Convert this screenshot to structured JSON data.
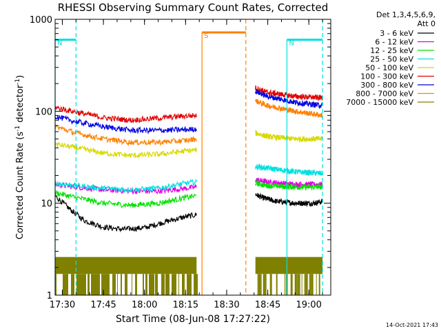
{
  "chart_data": {
    "type": "line",
    "title": "RHESSI Observing Summary Count Rates, Corrected",
    "xlabel": "Start Time (08-Jun-08 17:27:22)",
    "ylabel_main": "Corrected Count Rate (s",
    "ylabel_sup1": "-1",
    "ylabel_mid": " detector",
    "ylabel_sup2": "-1",
    "ylabel_end": ")",
    "yscale": "log",
    "ylim": [
      1,
      1000
    ],
    "xlim": [
      "17:27:22",
      "19:08:00"
    ],
    "x_ticks": [
      "17:30",
      "17:45",
      "18:00",
      "18:15",
      "18:30",
      "18:45",
      "19:00"
    ],
    "y_ticks": [
      "1",
      "10",
      "100",
      "1000"
    ],
    "legend": {
      "header": "Det 1,3,4,5,6,9,",
      "subheader": "Att 0",
      "position": "right",
      "entries": [
        {
          "label": "3 - 6 keV",
          "color": "#000000"
        },
        {
          "label": "6 - 12 keV",
          "color": "#e000e0"
        },
        {
          "label": "12 - 25 keV",
          "color": "#00e000"
        },
        {
          "label": "25 - 50 keV",
          "color": "#00e0e0"
        },
        {
          "label": "50 - 100 keV",
          "color": "#d8d800"
        },
        {
          "label": "100 - 300 keV",
          "color": "#e00000"
        },
        {
          "label": "300 - 800 keV",
          "color": "#0000e0"
        },
        {
          "label": "800 - 7000 keV",
          "color": "#ff8000"
        },
        {
          "label": "7000 - 15000 keV",
          "color": "#808000"
        }
      ]
    },
    "series": [
      {
        "name": "3 - 6 keV",
        "color": "#000000",
        "segments": [
          {
            "x": [
              "17:27:22",
              "17:33",
              "17:38",
              "17:45",
              "17:52",
              "18:00",
              "18:07",
              "18:14",
              "18:19"
            ],
            "y": [
              12,
              8.5,
              6.5,
              5.5,
              5.2,
              5.4,
              6.2,
              7,
              7.5
            ]
          },
          {
            "x": [
              "18:40:30",
              "18:43",
              "18:48",
              "18:55",
              "19:02",
              "19:05"
            ],
            "y": [
              12.5,
              11.5,
              10.5,
              10,
              10,
              10.5
            ]
          }
        ]
      },
      {
        "name": "6 - 12 keV",
        "color": "#e000e0",
        "segments": [
          {
            "x": [
              "17:27:22",
              "17:35",
              "17:45",
              "17:55",
              "18:05",
              "18:15",
              "18:19"
            ],
            "y": [
              16,
              15,
              14,
              13.5,
              13.5,
              14.5,
              15
            ]
          },
          {
            "x": [
              "18:40:30",
              "18:45",
              "18:55",
              "19:05"
            ],
            "y": [
              18,
              17,
              16,
              16
            ]
          }
        ]
      },
      {
        "name": "12 - 25 keV",
        "color": "#00e000",
        "segments": [
          {
            "x": [
              "17:27:22",
              "17:35",
              "17:45",
              "17:55",
              "18:05",
              "18:15",
              "18:19"
            ],
            "y": [
              13,
              11.5,
              10,
              9.5,
              10,
              11.5,
              12
            ]
          },
          {
            "x": [
              "18:40:30",
              "18:45",
              "18:55",
              "19:05"
            ],
            "y": [
              16.5,
              15.5,
              15,
              15
            ]
          }
        ]
      },
      {
        "name": "25 - 50 keV",
        "color": "#00e0e0",
        "segments": [
          {
            "x": [
              "17:27:22",
              "17:35",
              "17:45",
              "17:55",
              "18:05",
              "18:15",
              "18:19"
            ],
            "y": [
              16.5,
              15.5,
              14.5,
              14,
              14.5,
              16.5,
              17
            ]
          },
          {
            "x": [
              "18:40:30",
              "18:45",
              "18:55",
              "19:05"
            ],
            "y": [
              25,
              24,
              22,
              21
            ]
          }
        ]
      },
      {
        "name": "50 - 100 keV",
        "color": "#d8d800",
        "segments": [
          {
            "x": [
              "17:27:22",
              "17:35",
              "17:45",
              "17:55",
              "18:05",
              "18:15",
              "18:19"
            ],
            "y": [
              44,
              40,
              35,
              33,
              34,
              37,
              38
            ]
          },
          {
            "x": [
              "18:40:30",
              "18:45",
              "18:55",
              "19:05"
            ],
            "y": [
              58,
              53,
              50,
              50
            ]
          }
        ]
      },
      {
        "name": "100 - 300 keV",
        "color": "#e00000",
        "segments": [
          {
            "x": [
              "17:27:22",
              "17:35",
              "17:45",
              "17:55",
              "18:05",
              "18:15",
              "18:19"
            ],
            "y": [
              110,
              98,
              85,
              80,
              84,
              89,
              90
            ]
          },
          {
            "x": [
              "18:40:30",
              "18:45",
              "18:55",
              "19:05"
            ],
            "y": [
              180,
              160,
              145,
              140
            ]
          }
        ]
      },
      {
        "name": "300 - 800 keV",
        "color": "#0000e0",
        "segments": [
          {
            "x": [
              "17:27:22",
              "17:35",
              "17:45",
              "17:55",
              "18:05",
              "18:15",
              "18:19"
            ],
            "y": [
              88,
              77,
              68,
              62,
              62,
              63,
              64
            ]
          },
          {
            "x": [
              "18:40:30",
              "18:45",
              "18:55",
              "19:05"
            ],
            "y": [
              165,
              145,
              125,
              115
            ]
          }
        ]
      },
      {
        "name": "800 - 7000 keV",
        "color": "#ff8000",
        "segments": [
          {
            "x": [
              "17:27:22",
              "17:35",
              "17:45",
              "17:55",
              "18:05",
              "18:15",
              "18:19"
            ],
            "y": [
              68,
              58,
              50,
              46,
              46,
              48,
              50
            ]
          },
          {
            "x": [
              "18:40:30",
              "18:45",
              "18:55",
              "19:05"
            ],
            "y": [
              130,
              115,
              100,
              90
            ]
          }
        ]
      }
    ],
    "attenuator_blocks": {
      "name": "7000 - 15000 keV",
      "color": "#808000",
      "segments": [
        {
          "x_start": "17:27:22",
          "x_end": "18:19",
          "y_low": 1,
          "y_high": 2.6
        },
        {
          "x_start": "18:40:30",
          "x_end": "19:05",
          "y_low": 1,
          "y_high": 2.6
        }
      ]
    },
    "flags": [
      {
        "label": "N",
        "color": "#00e0e0",
        "x_start": "17:27:22",
        "x_end": "17:35",
        "y": 600,
        "dashed_x": "17:35",
        "solid_x": "17:27:22"
      },
      {
        "label": "N",
        "color": "#00e0e0",
        "x_start": "18:52",
        "x_end": "19:05",
        "y": 600,
        "dashed_x": "19:05",
        "solid_x": "18:52"
      },
      {
        "label": "S",
        "color": "#ff8000",
        "x_start": "18:21",
        "x_end": "18:37",
        "y": 720,
        "dashed_x": "18:37",
        "solid_x": "18:21"
      }
    ]
  },
  "footer": {
    "timestamp": "14-Oct-2021 17:43"
  }
}
